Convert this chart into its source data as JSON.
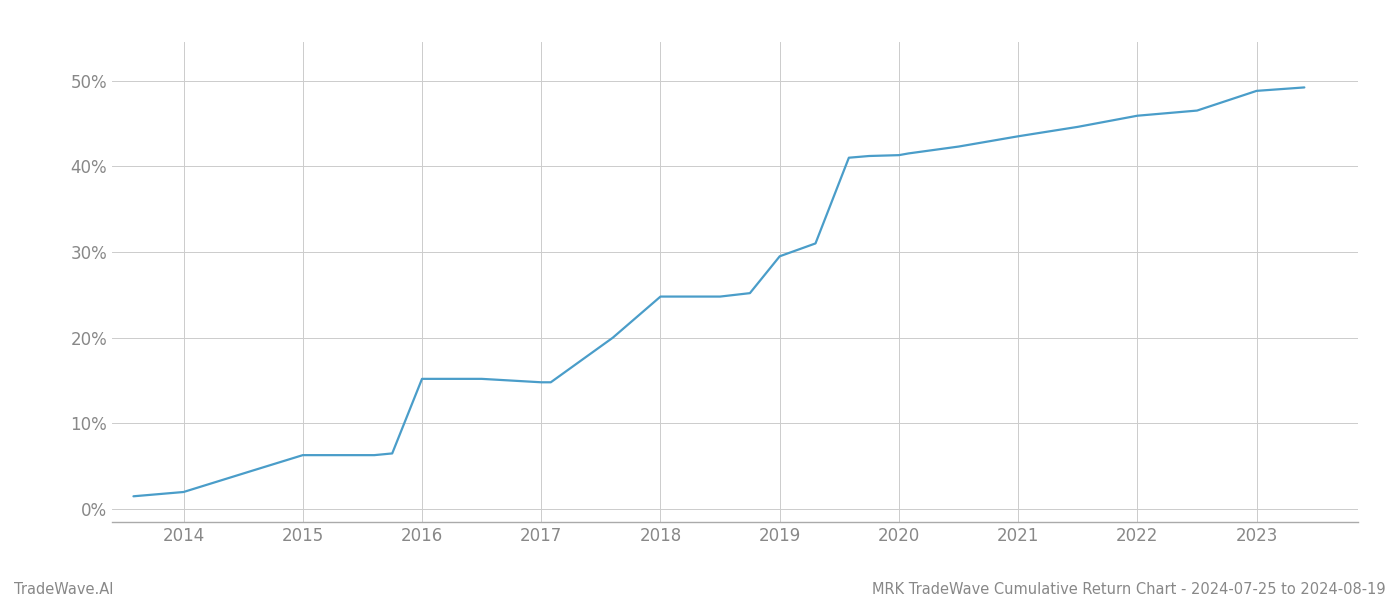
{
  "title": "MRK TradeWave Cumulative Return Chart - 2024-07-25 to 2024-08-19",
  "watermark": "TradeWave.AI",
  "line_color": "#4a9dc9",
  "background_color": "#ffffff",
  "grid_color": "#cccccc",
  "x_values": [
    2013.58,
    2014.0,
    2014.58,
    2015.0,
    2015.6,
    2015.75,
    2016.0,
    2016.5,
    2017.0,
    2017.08,
    2017.6,
    2018.0,
    2018.5,
    2018.75,
    2019.0,
    2019.3,
    2019.58,
    2019.75,
    2020.0,
    2020.08,
    2020.5,
    2021.0,
    2021.5,
    2022.0,
    2022.5,
    2023.0,
    2023.4
  ],
  "y_values": [
    0.015,
    0.02,
    0.045,
    0.063,
    0.063,
    0.065,
    0.152,
    0.152,
    0.148,
    0.148,
    0.2,
    0.248,
    0.248,
    0.252,
    0.295,
    0.31,
    0.41,
    0.412,
    0.413,
    0.415,
    0.423,
    0.435,
    0.446,
    0.459,
    0.465,
    0.488,
    0.492
  ],
  "xlim": [
    2013.4,
    2023.85
  ],
  "ylim": [
    -0.015,
    0.545
  ],
  "yticks": [
    0.0,
    0.1,
    0.2,
    0.3,
    0.4,
    0.5
  ],
  "xticks": [
    2014,
    2015,
    2016,
    2017,
    2018,
    2019,
    2020,
    2021,
    2022,
    2023
  ],
  "line_width": 1.6,
  "axis_color": "#aaaaaa",
  "tick_color": "#888888",
  "title_fontsize": 10.5,
  "watermark_fontsize": 10.5,
  "tick_fontsize": 12
}
